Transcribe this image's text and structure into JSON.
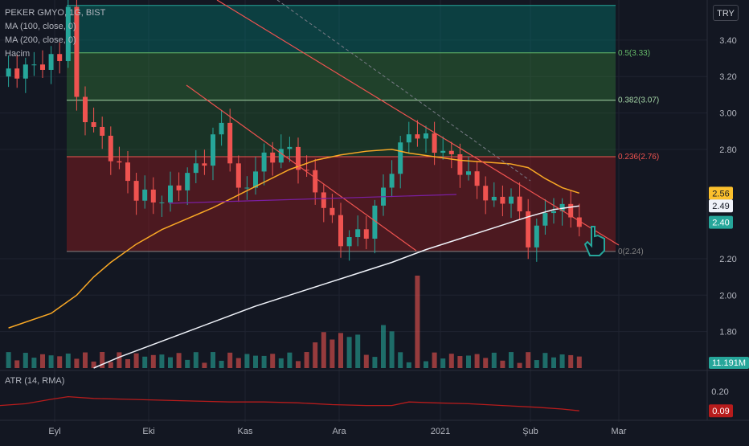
{
  "header": {
    "symbol_line": "PEKER GMYO, 1G, BIST",
    "ma100_label": "MA (100, close, 0)",
    "ma200_label": "MA (200, close, 0)",
    "volume_label": "Hacim",
    "atr_label": "ATR (14, RMA)",
    "currency_button": "TRY"
  },
  "chart_data": [
    {
      "type": "candlestick",
      "ylim": [
        1.6,
        3.62
      ],
      "yticks": [
        {
          "value": 3.4,
          "label": "3.40"
        },
        {
          "value": 3.2,
          "label": "3.20"
        },
        {
          "value": 3.0,
          "label": "3.00"
        },
        {
          "value": 2.8,
          "label": "2.80"
        },
        {
          "value": 2.2,
          "label": "2.20"
        },
        {
          "value": 2.0,
          "label": "2.00"
        },
        {
          "value": 1.8,
          "label": "1.80"
        }
      ],
      "xticks": [
        "Eyl",
        "Eki",
        "Kas",
        "Ara",
        "2021",
        "Şub",
        "Mar"
      ],
      "price_tags": [
        {
          "value": 2.56,
          "label": "2.56",
          "bg": "#fbc02d",
          "fg": "#131722"
        },
        {
          "value": 2.49,
          "label": "2.49",
          "bg": "#f0f3fa",
          "fg": "#131722"
        },
        {
          "value": 2.4,
          "label": "2.40",
          "bg": "#26a69a",
          "fg": "#ffffff"
        }
      ],
      "volume_tag": {
        "label": "11.191M",
        "bg": "#26a69a",
        "fg": "#ffffff"
      },
      "fibonacci": [
        {
          "ratio": "0.5",
          "price": 3.33,
          "label": "0.5(3.33)",
          "color": "#66bb6a"
        },
        {
          "ratio": "0.382",
          "price": 3.07,
          "label": "0.382(3.07)",
          "color": "#a5d6a7"
        },
        {
          "ratio": "0.236",
          "price": 2.76,
          "label": "0.236(2.76)",
          "color": "#ef5350"
        },
        {
          "ratio": "0",
          "price": 2.24,
          "label": "0(2.24)",
          "color": "#808080"
        }
      ],
      "ma100_points": [
        [
          1,
          1.82
        ],
        [
          6,
          1.9
        ],
        [
          9,
          2.0
        ],
        [
          11,
          2.1
        ],
        [
          13,
          2.18
        ],
        [
          16,
          2.28
        ],
        [
          19,
          2.36
        ],
        [
          22,
          2.42
        ],
        [
          25,
          2.48
        ],
        [
          28,
          2.55
        ],
        [
          31,
          2.62
        ],
        [
          34,
          2.69
        ],
        [
          37,
          2.74
        ],
        [
          40,
          2.77
        ],
        [
          43,
          2.79
        ],
        [
          46,
          2.8
        ],
        [
          48,
          2.78
        ],
        [
          51,
          2.76
        ],
        [
          54,
          2.74
        ],
        [
          57,
          2.73
        ],
        [
          60,
          2.72
        ],
        [
          62,
          2.7
        ],
        [
          64,
          2.64
        ],
        [
          66,
          2.59
        ],
        [
          68,
          2.56
        ]
      ],
      "ma200_points": [
        [
          11,
          1.6
        ],
        [
          14,
          1.66
        ],
        [
          18,
          1.73
        ],
        [
          22,
          1.8
        ],
        [
          26,
          1.87
        ],
        [
          30,
          1.94
        ],
        [
          34,
          2.0
        ],
        [
          38,
          2.06
        ],
        [
          42,
          2.12
        ],
        [
          46,
          2.18
        ],
        [
          50,
          2.25
        ],
        [
          54,
          2.31
        ],
        [
          58,
          2.37
        ],
        [
          62,
          2.43
        ],
        [
          65,
          2.47
        ],
        [
          68,
          2.49
        ]
      ]
    },
    {
      "type": "bar",
      "name": "volume"
    },
    {
      "type": "line",
      "name": "atr",
      "ylim": [
        0.05,
        0.3
      ],
      "yticks": [
        {
          "value": 0.2,
          "label": "0.20"
        },
        {
          "value": 0.1,
          "label": "0.10"
        }
      ],
      "value_tag": {
        "label": "0.09",
        "bg": "#b71c1c",
        "fg": "#ffffff"
      },
      "points": [
        [
          0,
          0.12
        ],
        [
          3,
          0.13
        ],
        [
          6,
          0.155
        ],
        [
          8,
          0.17
        ],
        [
          11,
          0.16
        ],
        [
          15,
          0.155
        ],
        [
          19,
          0.15
        ],
        [
          23,
          0.145
        ],
        [
          27,
          0.14
        ],
        [
          31,
          0.14
        ],
        [
          35,
          0.135
        ],
        [
          39,
          0.125
        ],
        [
          43,
          0.12
        ],
        [
          46,
          0.12
        ],
        [
          48,
          0.14
        ],
        [
          51,
          0.135
        ],
        [
          55,
          0.13
        ],
        [
          59,
          0.12
        ],
        [
          63,
          0.11
        ],
        [
          66,
          0.1
        ],
        [
          68,
          0.09
        ]
      ]
    }
  ]
}
